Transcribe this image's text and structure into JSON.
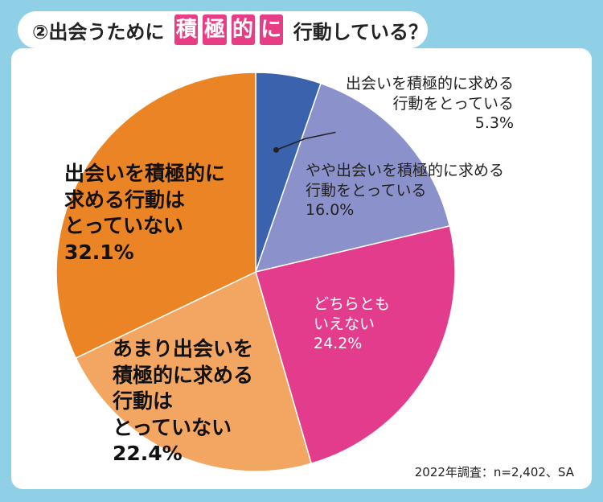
{
  "title": {
    "prefix": "②出会うために",
    "highlight": [
      "積",
      "極",
      "的",
      "に"
    ],
    "suffix": "行動している？"
  },
  "source": "2022年調査：n=2,402、SA",
  "colors": {
    "background": "#8fd0e6",
    "accent": "#e63d86"
  },
  "chart_data": {
    "type": "pie",
    "start_angle_deg": 0,
    "direction": "clockwise",
    "slices": [
      {
        "label_lines": [
          "出会いを積極的に求める",
          "行動をとっている"
        ],
        "value": 5.3,
        "value_label": "5.3%",
        "color": "#3a62ad"
      },
      {
        "label_lines": [
          "やや出会いを積極的に求める",
          "行動をとっている"
        ],
        "value": 16.0,
        "value_label": "16.0%",
        "color": "#8b92cb"
      },
      {
        "label_lines": [
          "どちらとも",
          "いえない"
        ],
        "value": 24.2,
        "value_label": "24.2%",
        "color": "#e33c8d"
      },
      {
        "label_lines": [
          "あまり出会いを",
          "積極的に求める",
          "行動は",
          "とっていない"
        ],
        "value": 22.4,
        "value_label": "22.4%",
        "color": "#f2a661"
      },
      {
        "label_lines": [
          "出会いを積極的に",
          "求める行動は",
          "とっていない"
        ],
        "value": 32.1,
        "value_label": "32.1%",
        "color": "#ea8424"
      }
    ]
  }
}
